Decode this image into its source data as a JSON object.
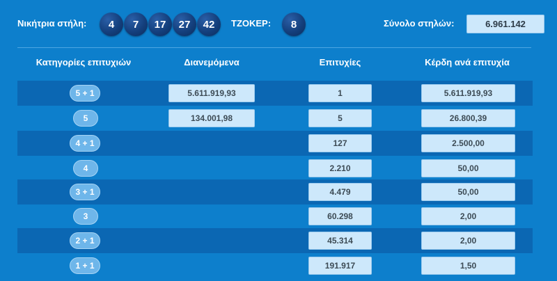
{
  "header": {
    "winning_label": "Νικήτρια στήλη:",
    "numbers": [
      "4",
      "7",
      "17",
      "27",
      "42"
    ],
    "joker_label": "ΤΖΟΚΕΡ:",
    "joker_number": "8",
    "total_label": "Σύνολο στηλών:",
    "total_value": "6.961.142"
  },
  "columns": {
    "categories": "Κατηγορίες επιτυχιών",
    "distributed": "Διανεμόμενα",
    "winners": "Επιτυχίες",
    "prize_per_win": "Κέρδη ανά επιτυχία"
  },
  "rows": [
    {
      "category": "5 + 1",
      "distributed": "5.611.919,93",
      "winners": "1",
      "prize": "5.611.919,93"
    },
    {
      "category": "5",
      "distributed": "134.001,98",
      "winners": "5",
      "prize": "26.800,39"
    },
    {
      "category": "4 + 1",
      "distributed": "",
      "winners": "127",
      "prize": "2.500,00"
    },
    {
      "category": "4",
      "distributed": "",
      "winners": "2.210",
      "prize": "50,00"
    },
    {
      "category": "3 + 1",
      "distributed": "",
      "winners": "4.479",
      "prize": "50,00"
    },
    {
      "category": "3",
      "distributed": "",
      "winners": "60.298",
      "prize": "2,00"
    },
    {
      "category": "2 + 1",
      "distributed": "",
      "winners": "45.314",
      "prize": "2,00"
    },
    {
      "category": "1 + 1",
      "distributed": "",
      "winners": "191.917",
      "prize": "1,50"
    }
  ],
  "colors": {
    "background": "#0d7fcc",
    "stripe": "#0b67b3",
    "ball": "#143f7c",
    "value_box": "#cde8fb"
  }
}
